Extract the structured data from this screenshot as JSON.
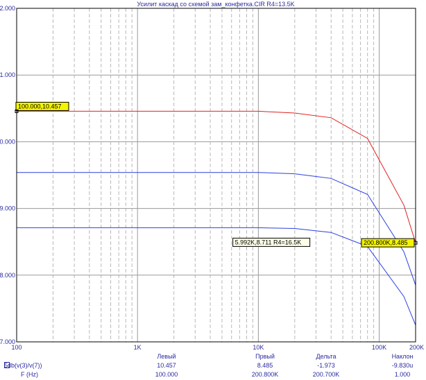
{
  "chart_data": {
    "type": "line",
    "title": "Усилит каскад со схемой зам_конфетка.CIR R4=13.5K",
    "x_scale": "log",
    "xlim": [
      100,
      200000
    ],
    "ylim": [
      7.0,
      12.0
    ],
    "x_ticks": [
      {
        "value": 100,
        "label": "100"
      },
      {
        "value": 1000,
        "label": "1K"
      },
      {
        "value": 10000,
        "label": "10K"
      },
      {
        "value": 100000,
        "label": "100K"
      },
      {
        "value": 200000,
        "label": "200K"
      }
    ],
    "y_ticks": [
      {
        "value": 7.0,
        "label": "7.000"
      },
      {
        "value": 8.0,
        "label": "8.000"
      },
      {
        "value": 9.0,
        "label": "9.000"
      },
      {
        "value": 10.0,
        "label": "10.000"
      },
      {
        "value": 11.0,
        "label": "11.000"
      },
      {
        "value": 12.0,
        "label": "12.000"
      }
    ],
    "grid": true,
    "series": [
      {
        "color": "#e02020",
        "x": [
          100,
          10000,
          20000,
          40000,
          80000,
          160000,
          200000
        ],
        "y": [
          10.457,
          10.457,
          10.43,
          10.36,
          10.05,
          9.05,
          8.485
        ]
      },
      {
        "color": "#2b3fe0",
        "x": [
          100,
          10000,
          20000,
          40000,
          80000,
          160000,
          200000
        ],
        "y": [
          9.54,
          9.54,
          9.52,
          9.45,
          9.21,
          8.35,
          7.85
        ]
      },
      {
        "color": "#2b3fe0",
        "x": [
          100,
          10000,
          20000,
          40000,
          80000,
          160000,
          200000
        ],
        "y": [
          8.711,
          8.711,
          8.7,
          8.64,
          8.43,
          7.68,
          7.25
        ]
      }
    ],
    "annotations": [
      {
        "text": "100.000,10.457",
        "x": 100,
        "y": 10.457,
        "style": "cursor"
      },
      {
        "text": "200.800K,8.485",
        "x": 200000,
        "y": 8.485,
        "style": "cursor"
      },
      {
        "text": "5.992K,8.711 R4=16.5K",
        "x": 5992,
        "y": 8.711,
        "style": "label"
      }
    ]
  },
  "footer": {
    "headers": [
      "Левый",
      "Првый",
      "Дельта",
      "Наклон"
    ],
    "rows": [
      {
        "label": "db(v(3)/v(7))",
        "marker": "5",
        "values": [
          "10.457",
          "8.485",
          "-1.973",
          "-9.830u"
        ]
      },
      {
        "label": "F (Hz)",
        "marker": "",
        "values": [
          "100.000",
          "200.800K",
          "200.700K",
          "1.000"
        ]
      }
    ]
  }
}
